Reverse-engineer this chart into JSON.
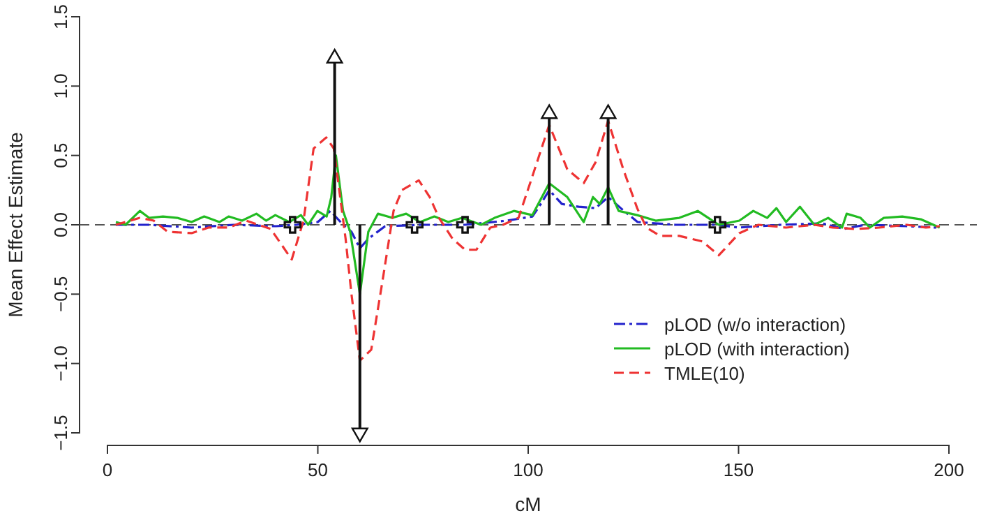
{
  "chart_data": {
    "type": "line",
    "xlabel": "cM",
    "ylabel": "Mean Effect Estimate",
    "xlim": [
      0,
      200
    ],
    "xticks": [
      0,
      50,
      100,
      150,
      200
    ],
    "ylim": [
      -1.5,
      1.5
    ],
    "yticks": [
      {
        "value": -1.5,
        "label": "−1.5"
      },
      {
        "value": -1,
        "label": "−1.0"
      },
      {
        "value": -0.5,
        "label": "−0.5"
      },
      {
        "value": 0,
        "label": "0.0"
      },
      {
        "value": 0.5,
        "label": "0.5"
      },
      {
        "value": 1,
        "label": "1.0"
      },
      {
        "value": 1.5,
        "label": "1.5"
      }
    ],
    "grid": false,
    "legend": "bottom right",
    "ref_lines": [
      {
        "axis": "y",
        "value": 0,
        "color": "#555555",
        "line_style": "dashed"
      }
    ],
    "series": [
      {
        "name": "pLOD (w/o interaction)",
        "color": "#2222cc",
        "line_style": "dashdot",
        "x": [
          2,
          10,
          20,
          30,
          40,
          45,
          50,
          53,
          56,
          58,
          60,
          62,
          66,
          75,
          85,
          95,
          101,
          103,
          105,
          108,
          112,
          116,
          119,
          122,
          126,
          135,
          145,
          150,
          160,
          170,
          175,
          180,
          190,
          197
        ],
        "values": [
          0,
          0,
          -0.02,
          0,
          -0.01,
          0,
          0.02,
          0.1,
          0,
          -0.05,
          -0.17,
          -0.1,
          -0.01,
          0,
          0,
          0.03,
          0.06,
          0.15,
          0.25,
          0.15,
          0.13,
          0.12,
          0.2,
          0.12,
          0.02,
          0,
          0,
          -0.02,
          0,
          0.01,
          -0.03,
          0,
          -0.01,
          -0.02
        ]
      },
      {
        "name": "pLOD (with interaction)",
        "color": "#22bb22",
        "line_style": "solid",
        "x": [
          2,
          4.3,
          7.7,
          9.9,
          13.2,
          16.6,
          20,
          23,
          26.6,
          28.8,
          32,
          35.4,
          37.7,
          39.9,
          43.2,
          46,
          47.7,
          49.9,
          52.1,
          53.2,
          54.3,
          56,
          57.7,
          60,
          62,
          64.3,
          67.7,
          71,
          74.3,
          77.7,
          81,
          84.3,
          88.8,
          92,
          96.6,
          101,
          105,
          109.3,
          113.2,
          115.4,
          117,
          119,
          121.5,
          125.9,
          130.3,
          135.9,
          140.3,
          145.3,
          150.2,
          153.5,
          156.8,
          159,
          161.3,
          164.6,
          168,
          171.3,
          174.6,
          175.7,
          179,
          181.2,
          184.5,
          188.9,
          193.3,
          197.8
        ],
        "values": [
          0.02,
          0,
          0.1,
          0.05,
          0.06,
          0.05,
          0.02,
          0.06,
          0.02,
          0.06,
          0.03,
          0.08,
          0.03,
          0.07,
          0.02,
          0.07,
          0,
          0.1,
          0.06,
          0.2,
          0.5,
          0.1,
          -0.05,
          -0.5,
          -0.05,
          0.08,
          0.05,
          0.08,
          0.02,
          0.06,
          0.02,
          0.05,
          0,
          0.05,
          0.1,
          0.07,
          0.3,
          0.2,
          0.02,
          0.2,
          0.15,
          0.27,
          0.1,
          0.07,
          0.03,
          0.05,
          0.1,
          0,
          0.03,
          0.1,
          0.05,
          0.12,
          0.02,
          0.13,
          0,
          0.05,
          -0.02,
          0.08,
          0.05,
          -0.02,
          0.05,
          0.06,
          0.04,
          -0.02
        ]
      },
      {
        "name": "TMLE(10)",
        "color": "#ee3333",
        "line_style": "dashed",
        "x": [
          2,
          7.7,
          11,
          14.3,
          20,
          24,
          28.8,
          33,
          38.8,
          43.8,
          46.6,
          49,
          52,
          53.8,
          56.6,
          58,
          60,
          62.7,
          65.4,
          68,
          70,
          74,
          76.6,
          78.8,
          82,
          85,
          87.7,
          91,
          94,
          97.7,
          101,
          105,
          109.3,
          113.2,
          116,
          119,
          122.6,
          125.9,
          128.1,
          131.4,
          135.9,
          141.4,
          145.3,
          150.2,
          154.7,
          161.3,
          168,
          172.4,
          177.9,
          183.4,
          190,
          194.5,
          197.8
        ],
        "values": [
          0,
          0.05,
          0.03,
          -0.05,
          -0.06,
          -0.02,
          -0.02,
          0.03,
          -0.03,
          -0.25,
          0.03,
          0.55,
          0.63,
          0.55,
          -0.1,
          -0.5,
          -0.98,
          -0.9,
          -0.4,
          0.1,
          0.25,
          0.32,
          0.2,
          0.05,
          -0.1,
          -0.18,
          -0.18,
          -0.02,
          0,
          0.05,
          0.35,
          0.72,
          0.4,
          0.3,
          0.45,
          0.75,
          0.4,
          0.12,
          -0.02,
          -0.08,
          -0.08,
          -0.12,
          -0.22,
          -0.06,
          0,
          -0.02,
          0,
          -0.02,
          -0.03,
          -0.02,
          0,
          -0.02,
          -0.01
        ]
      },
      {
        "type": "lollipop",
        "color": "#111111",
        "marker": "triangle",
        "x": [
          54,
          60,
          105,
          119
        ],
        "values": [
          1.2,
          -1.5,
          0.8,
          0.8
        ]
      },
      {
        "type": "scatter",
        "color": "#111111",
        "marker": "cross",
        "x": [
          44,
          73,
          85,
          145
        ],
        "values": [
          0,
          0,
          0,
          0
        ]
      }
    ]
  }
}
